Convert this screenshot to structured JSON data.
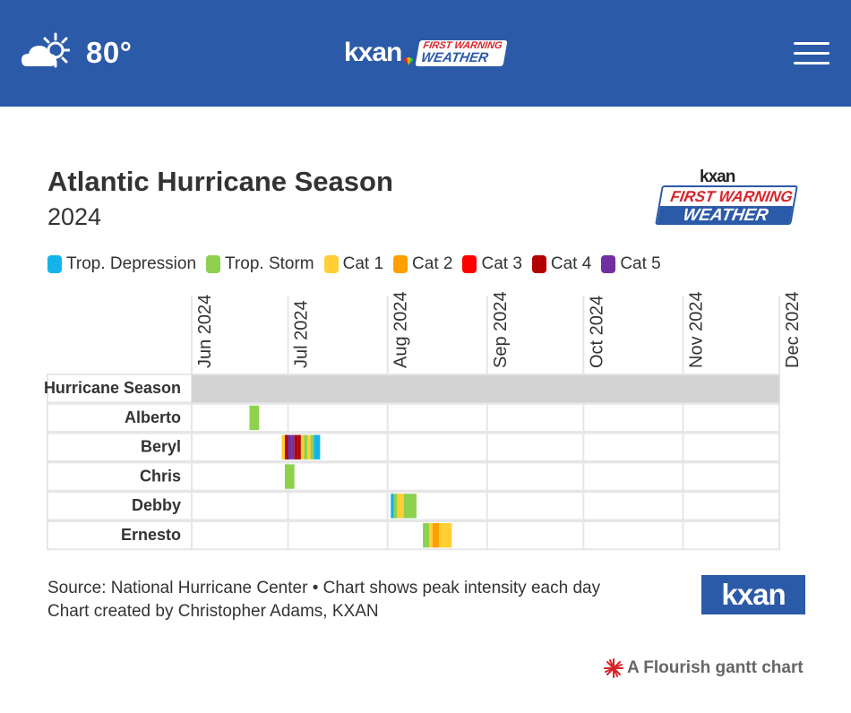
{
  "header": {
    "temperature": "80°",
    "weather_icon": "partly-cloudy-icon",
    "brand_kxan": "kxan",
    "brand_first_warning": "FIRST WARNING",
    "brand_weather": "WEATHER",
    "menu_icon": "hamburger-icon",
    "bg_color": "#2b5aa8"
  },
  "logo_right": {
    "kxan": "kxan",
    "first_warning": "FIRST WARNING",
    "weather": "WEATHER"
  },
  "legend": [
    {
      "label": "Trop. Depression",
      "color": "#14b4ea"
    },
    {
      "label": "Trop. Storm",
      "color": "#8dd14f"
    },
    {
      "label": "Cat 1",
      "color": "#ffcf35"
    },
    {
      "label": "Cat 2",
      "color": "#ff9f00"
    },
    {
      "label": "Cat 3",
      "color": "#ff0000"
    },
    {
      "label": "Cat 4",
      "color": "#b30000"
    },
    {
      "label": "Cat 5",
      "color": "#7030a0"
    }
  ],
  "chart_data": {
    "type": "gantt",
    "title": "Atlantic Hurricane Season",
    "subtitle": "2024",
    "x_axis": {
      "range": [
        "2024-06-01",
        "2024-12-01"
      ],
      "tick_labels": [
        "Jun 2024",
        "Jul 2024",
        "Aug 2024",
        "Sep 2024",
        "Oct 2024",
        "Nov 2024",
        "Dec 2024"
      ],
      "tick_dates": [
        "2024-06-01",
        "2024-07-01",
        "2024-08-01",
        "2024-09-01",
        "2024-10-01",
        "2024-11-01",
        "2024-12-01"
      ]
    },
    "rows": [
      {
        "name": "Hurricane Season",
        "segments": [
          {
            "start": "2024-06-01",
            "end": "2024-12-01",
            "category": "Season",
            "color": "#d3d3d3"
          }
        ]
      },
      {
        "name": "Alberto",
        "segments": [
          {
            "start": "2024-06-19",
            "end": "2024-06-22",
            "category": "Trop. Storm"
          }
        ]
      },
      {
        "name": "Beryl",
        "segments": [
          {
            "start": "2024-06-29",
            "end": "2024-06-30",
            "category": "Cat 1"
          },
          {
            "start": "2024-06-30",
            "end": "2024-07-01",
            "category": "Cat 4"
          },
          {
            "start": "2024-07-01",
            "end": "2024-07-02",
            "category": "Cat 5"
          },
          {
            "start": "2024-07-02",
            "end": "2024-07-03",
            "category": "Cat 5"
          },
          {
            "start": "2024-07-03",
            "end": "2024-07-04",
            "category": "Cat 4"
          },
          {
            "start": "2024-07-04",
            "end": "2024-07-05",
            "category": "Cat 4"
          },
          {
            "start": "2024-07-05",
            "end": "2024-07-06",
            "category": "Cat 1"
          },
          {
            "start": "2024-07-06",
            "end": "2024-07-07",
            "category": "Trop. Storm"
          },
          {
            "start": "2024-07-07",
            "end": "2024-07-08",
            "category": "Cat 1"
          },
          {
            "start": "2024-07-08",
            "end": "2024-07-09",
            "category": "Trop. Storm"
          },
          {
            "start": "2024-07-09",
            "end": "2024-07-11",
            "category": "Trop. Depression"
          }
        ]
      },
      {
        "name": "Chris",
        "segments": [
          {
            "start": "2024-06-30",
            "end": "2024-07-03",
            "category": "Trop. Storm"
          }
        ]
      },
      {
        "name": "Debby",
        "segments": [
          {
            "start": "2024-08-02",
            "end": "2024-08-03",
            "category": "Trop. Depression"
          },
          {
            "start": "2024-08-03",
            "end": "2024-08-04",
            "category": "Trop. Storm"
          },
          {
            "start": "2024-08-04",
            "end": "2024-08-06",
            "category": "Cat 1"
          },
          {
            "start": "2024-08-06",
            "end": "2024-08-10",
            "category": "Trop. Storm"
          }
        ]
      },
      {
        "name": "Ernesto",
        "segments": [
          {
            "start": "2024-08-12",
            "end": "2024-08-14",
            "category": "Trop. Storm"
          },
          {
            "start": "2024-08-14",
            "end": "2024-08-15",
            "category": "Cat 1"
          },
          {
            "start": "2024-08-15",
            "end": "2024-08-17",
            "category": "Cat 2"
          },
          {
            "start": "2024-08-17",
            "end": "2024-08-21",
            "category": "Cat 1"
          }
        ]
      }
    ],
    "grid": true,
    "legend_position": "top-left"
  },
  "footer": {
    "source_line1": "Source: National Hurricane Center • Chart shows peak intensity each day",
    "source_line2": "Chart created by Christopher Adams, KXAN",
    "logo": "kxan",
    "flourish_label": "A Flourish gantt chart",
    "flourish_icon": "flourish-star-icon"
  }
}
